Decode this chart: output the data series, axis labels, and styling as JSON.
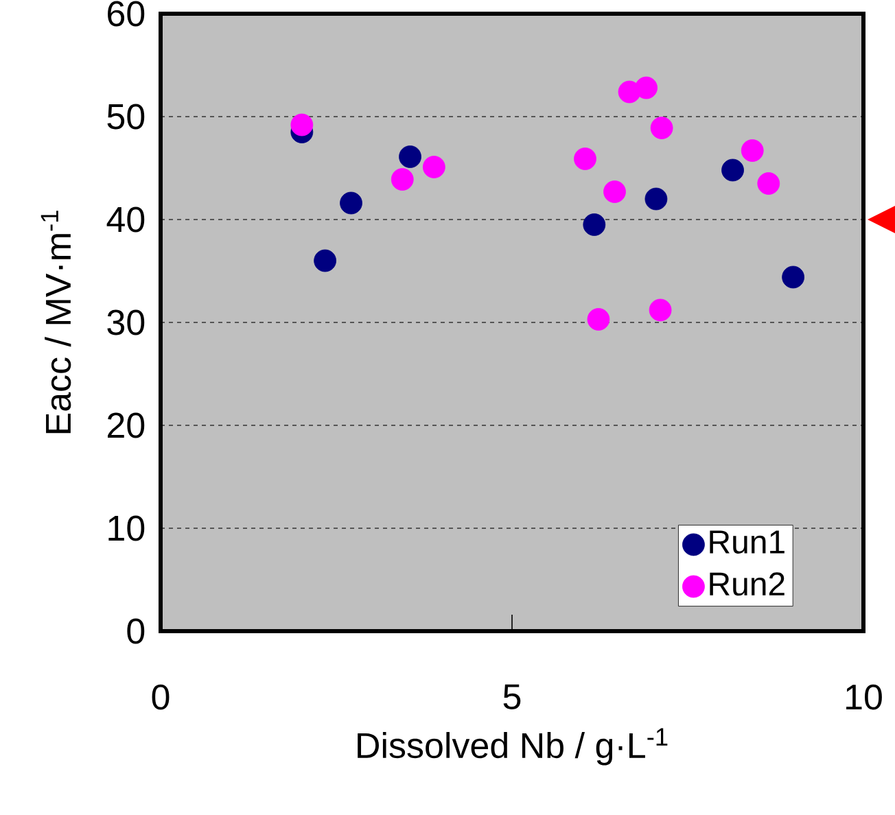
{
  "chart_data": {
    "type": "scatter",
    "xlabel": "Dissolved Nb / g·L$^{-1}$",
    "ylabel": "Eacc / MV·m$^{-1}$",
    "xlim": [
      0,
      10
    ],
    "xticks": [
      0,
      5,
      10
    ],
    "ylim": [
      0,
      60
    ],
    "yticks": [
      0,
      10,
      20,
      30,
      40,
      50,
      60
    ],
    "grid": "y",
    "legend": "bottom right",
    "marker": "circle",
    "series": [
      {
        "name": "Run1",
        "color": "#000080",
        "x": [
          2.01,
          2.34,
          2.71,
          3.55,
          6.17,
          7.05,
          8.14,
          9.0
        ],
        "values": [
          48.5,
          36.0,
          41.6,
          46.1,
          39.5,
          42.0,
          44.8,
          34.4
        ]
      },
      {
        "name": "Run2",
        "color": "#ff00ff",
        "x": [
          2.01,
          3.44,
          3.89,
          6.04,
          6.46,
          6.23,
          6.67,
          6.91,
          7.13,
          7.11,
          8.42,
          8.65
        ],
        "values": [
          49.2,
          43.9,
          45.1,
          45.9,
          42.7,
          30.3,
          52.4,
          52.8,
          48.9,
          31.2,
          46.7,
          43.5
        ]
      }
    ]
  }
}
